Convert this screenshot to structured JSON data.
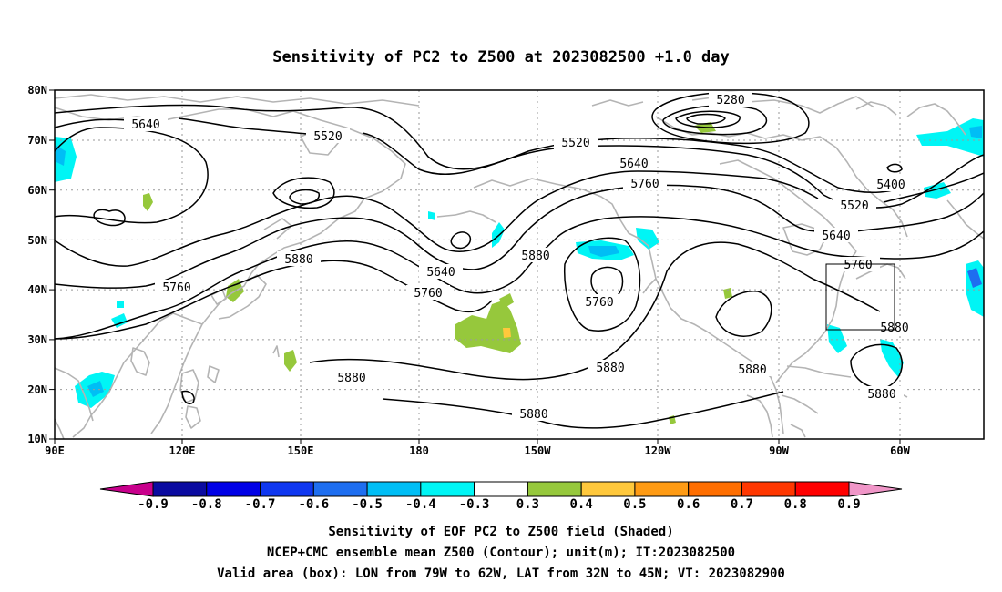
{
  "title": "Sensitivity of PC2 to Z500 at 2023082500 +1.0 day",
  "lat_ticks": [
    "80N",
    "70N",
    "60N",
    "50N",
    "40N",
    "30N",
    "20N",
    "10N"
  ],
  "lon_ticks": [
    "90E",
    "120E",
    "150E",
    "180",
    "150W",
    "120W",
    "90W",
    "60W"
  ],
  "contour_labels": [
    "5640",
    "5520",
    "5520",
    "5280",
    "5640",
    "5760",
    "5400",
    "5520",
    "5640",
    "5880",
    "5760",
    "5640",
    "5880",
    "5760",
    "5760",
    "5760",
    "5880",
    "5880",
    "5880",
    "5880",
    "5880",
    "5880"
  ],
  "colorbar": {
    "labels": [
      "-0.9",
      "-0.8",
      "-0.7",
      "-0.6",
      "-0.5",
      "-0.4",
      "-0.3",
      "0.3",
      "0.4",
      "0.5",
      "0.6",
      "0.7",
      "0.8",
      "0.9"
    ],
    "colors": [
      "#0a0aa0",
      "#0000e6",
      "#0f37f0",
      "#1e6ef0",
      "#00bef5",
      "#00f5f5",
      "#ffffff",
      "#96c83c",
      "#ffc83c",
      "#ff9b14",
      "#ff6e00",
      "#ff3700",
      "#ff0000"
    ],
    "low_end_color": "#c8008c",
    "high_end_color": "#f096c8"
  },
  "caption": [
    "Sensitivity of EOF PC2 to Z500 field (Shaded)",
    "NCEP+CMC ensemble mean Z500 (Contour); unit(m); IT:2023082500",
    "Valid area (box): LON from 79W to 62W, LAT from 32N to 45N; VT: 2023082900"
  ],
  "map": {
    "lon_range": "90E to 45W",
    "lat_range": "10N to 80N",
    "valid_box": {
      "lon": "79W to 62W",
      "lat": "32N to 45N"
    }
  }
}
